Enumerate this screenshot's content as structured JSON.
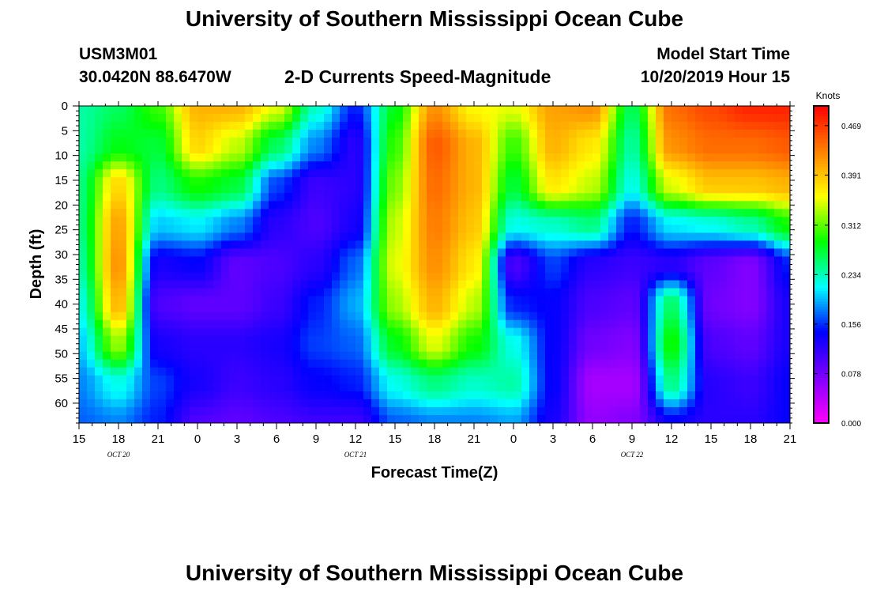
{
  "page": {
    "title_top": "University of Southern Mississippi Ocean Cube",
    "title_bottom": "University of Southern Mississippi Ocean Cube",
    "station_id": "USM3M01",
    "station_location": "30.0420N 88.6470W",
    "model_start_label": "Model Start Time",
    "model_start_value": "10/20/2019 Hour 15"
  },
  "chart_data": {
    "type": "heatmap",
    "title": "2-D Currents Speed-Magnitude",
    "xlabel": "Forecast Time(Z)",
    "ylabel": "Depth (ft)",
    "x_ticks": [
      "15",
      "18",
      "21",
      "0",
      "3",
      "6",
      "9",
      "12",
      "15",
      "18",
      "21",
      "0",
      "3",
      "6",
      "9",
      "12",
      "15",
      "18",
      "21"
    ],
    "date_labels": [
      {
        "label": "OCT  20",
        "at_tick": 1
      },
      {
        "label": "OCT  21",
        "at_tick": 7
      },
      {
        "label": "OCT  22",
        "at_tick": 14
      }
    ],
    "y_ticks": [
      0,
      5,
      10,
      15,
      20,
      25,
      30,
      35,
      40,
      45,
      50,
      55,
      60
    ],
    "ylim": [
      0,
      64
    ],
    "y_inverted": true,
    "x_start": "2019-10-20 15Z",
    "x_end": "2019-10-22 21Z",
    "colorbar": {
      "unit": "Knots",
      "ticks": [
        "0.000",
        "0.078",
        "0.156",
        "0.234",
        "0.312",
        "0.391",
        "0.469"
      ],
      "range": [
        0.0,
        0.5
      ],
      "colors": [
        "#ff00ff",
        "#8000ff",
        "#0000ff",
        "#00ffff",
        "#00ff00",
        "#ffff00",
        "#ff8000",
        "#ff0000"
      ]
    },
    "time_hours_since_start": [
      0,
      3,
      6,
      9,
      12,
      15,
      18,
      21,
      24,
      27,
      30,
      33,
      36,
      39,
      42,
      45,
      48,
      51,
      54
    ],
    "depth_ft": [
      0,
      8,
      16,
      24,
      32,
      40,
      48,
      56,
      64
    ],
    "speed_knots": [
      [
        0.24,
        0.24,
        0.25,
        0.25,
        0.24,
        0.22,
        0.2,
        0.18,
        0.17
      ],
      [
        0.26,
        0.28,
        0.38,
        0.41,
        0.42,
        0.4,
        0.33,
        0.22,
        0.18
      ],
      [
        0.3,
        0.27,
        0.25,
        0.2,
        0.13,
        0.1,
        0.13,
        0.16,
        0.15
      ],
      [
        0.4,
        0.38,
        0.29,
        0.21,
        0.14,
        0.09,
        0.12,
        0.13,
        0.1
      ],
      [
        0.4,
        0.34,
        0.27,
        0.18,
        0.09,
        0.09,
        0.12,
        0.11,
        0.09
      ],
      [
        0.35,
        0.26,
        0.16,
        0.12,
        0.1,
        0.11,
        0.13,
        0.12,
        0.1
      ],
      [
        0.23,
        0.18,
        0.11,
        0.1,
        0.12,
        0.15,
        0.16,
        0.14,
        0.11
      ],
      [
        0.15,
        0.12,
        0.12,
        0.13,
        0.17,
        0.19,
        0.17,
        0.15,
        0.11
      ],
      [
        0.28,
        0.3,
        0.32,
        0.34,
        0.35,
        0.33,
        0.28,
        0.22,
        0.17
      ],
      [
        0.42,
        0.45,
        0.44,
        0.43,
        0.42,
        0.4,
        0.35,
        0.25,
        0.18
      ],
      [
        0.36,
        0.4,
        0.4,
        0.39,
        0.37,
        0.34,
        0.29,
        0.23,
        0.18
      ],
      [
        0.35,
        0.3,
        0.27,
        0.22,
        0.1,
        0.15,
        0.22,
        0.24,
        0.19
      ],
      [
        0.41,
        0.4,
        0.37,
        0.23,
        0.16,
        0.14,
        0.14,
        0.14,
        0.13
      ],
      [
        0.42,
        0.37,
        0.34,
        0.25,
        0.12,
        0.1,
        0.08,
        0.05,
        0.06
      ],
      [
        0.26,
        0.24,
        0.22,
        0.15,
        0.11,
        0.09,
        0.07,
        0.05,
        0.07
      ],
      [
        0.44,
        0.42,
        0.35,
        0.21,
        0.12,
        0.26,
        0.29,
        0.25,
        0.14
      ],
      [
        0.46,
        0.44,
        0.39,
        0.22,
        0.09,
        0.08,
        0.1,
        0.12,
        0.12
      ],
      [
        0.48,
        0.44,
        0.39,
        0.24,
        0.07,
        0.07,
        0.09,
        0.11,
        0.12
      ],
      [
        0.48,
        0.45,
        0.4,
        0.29,
        0.15,
        0.13,
        0.13,
        0.14,
        0.14
      ]
    ]
  }
}
